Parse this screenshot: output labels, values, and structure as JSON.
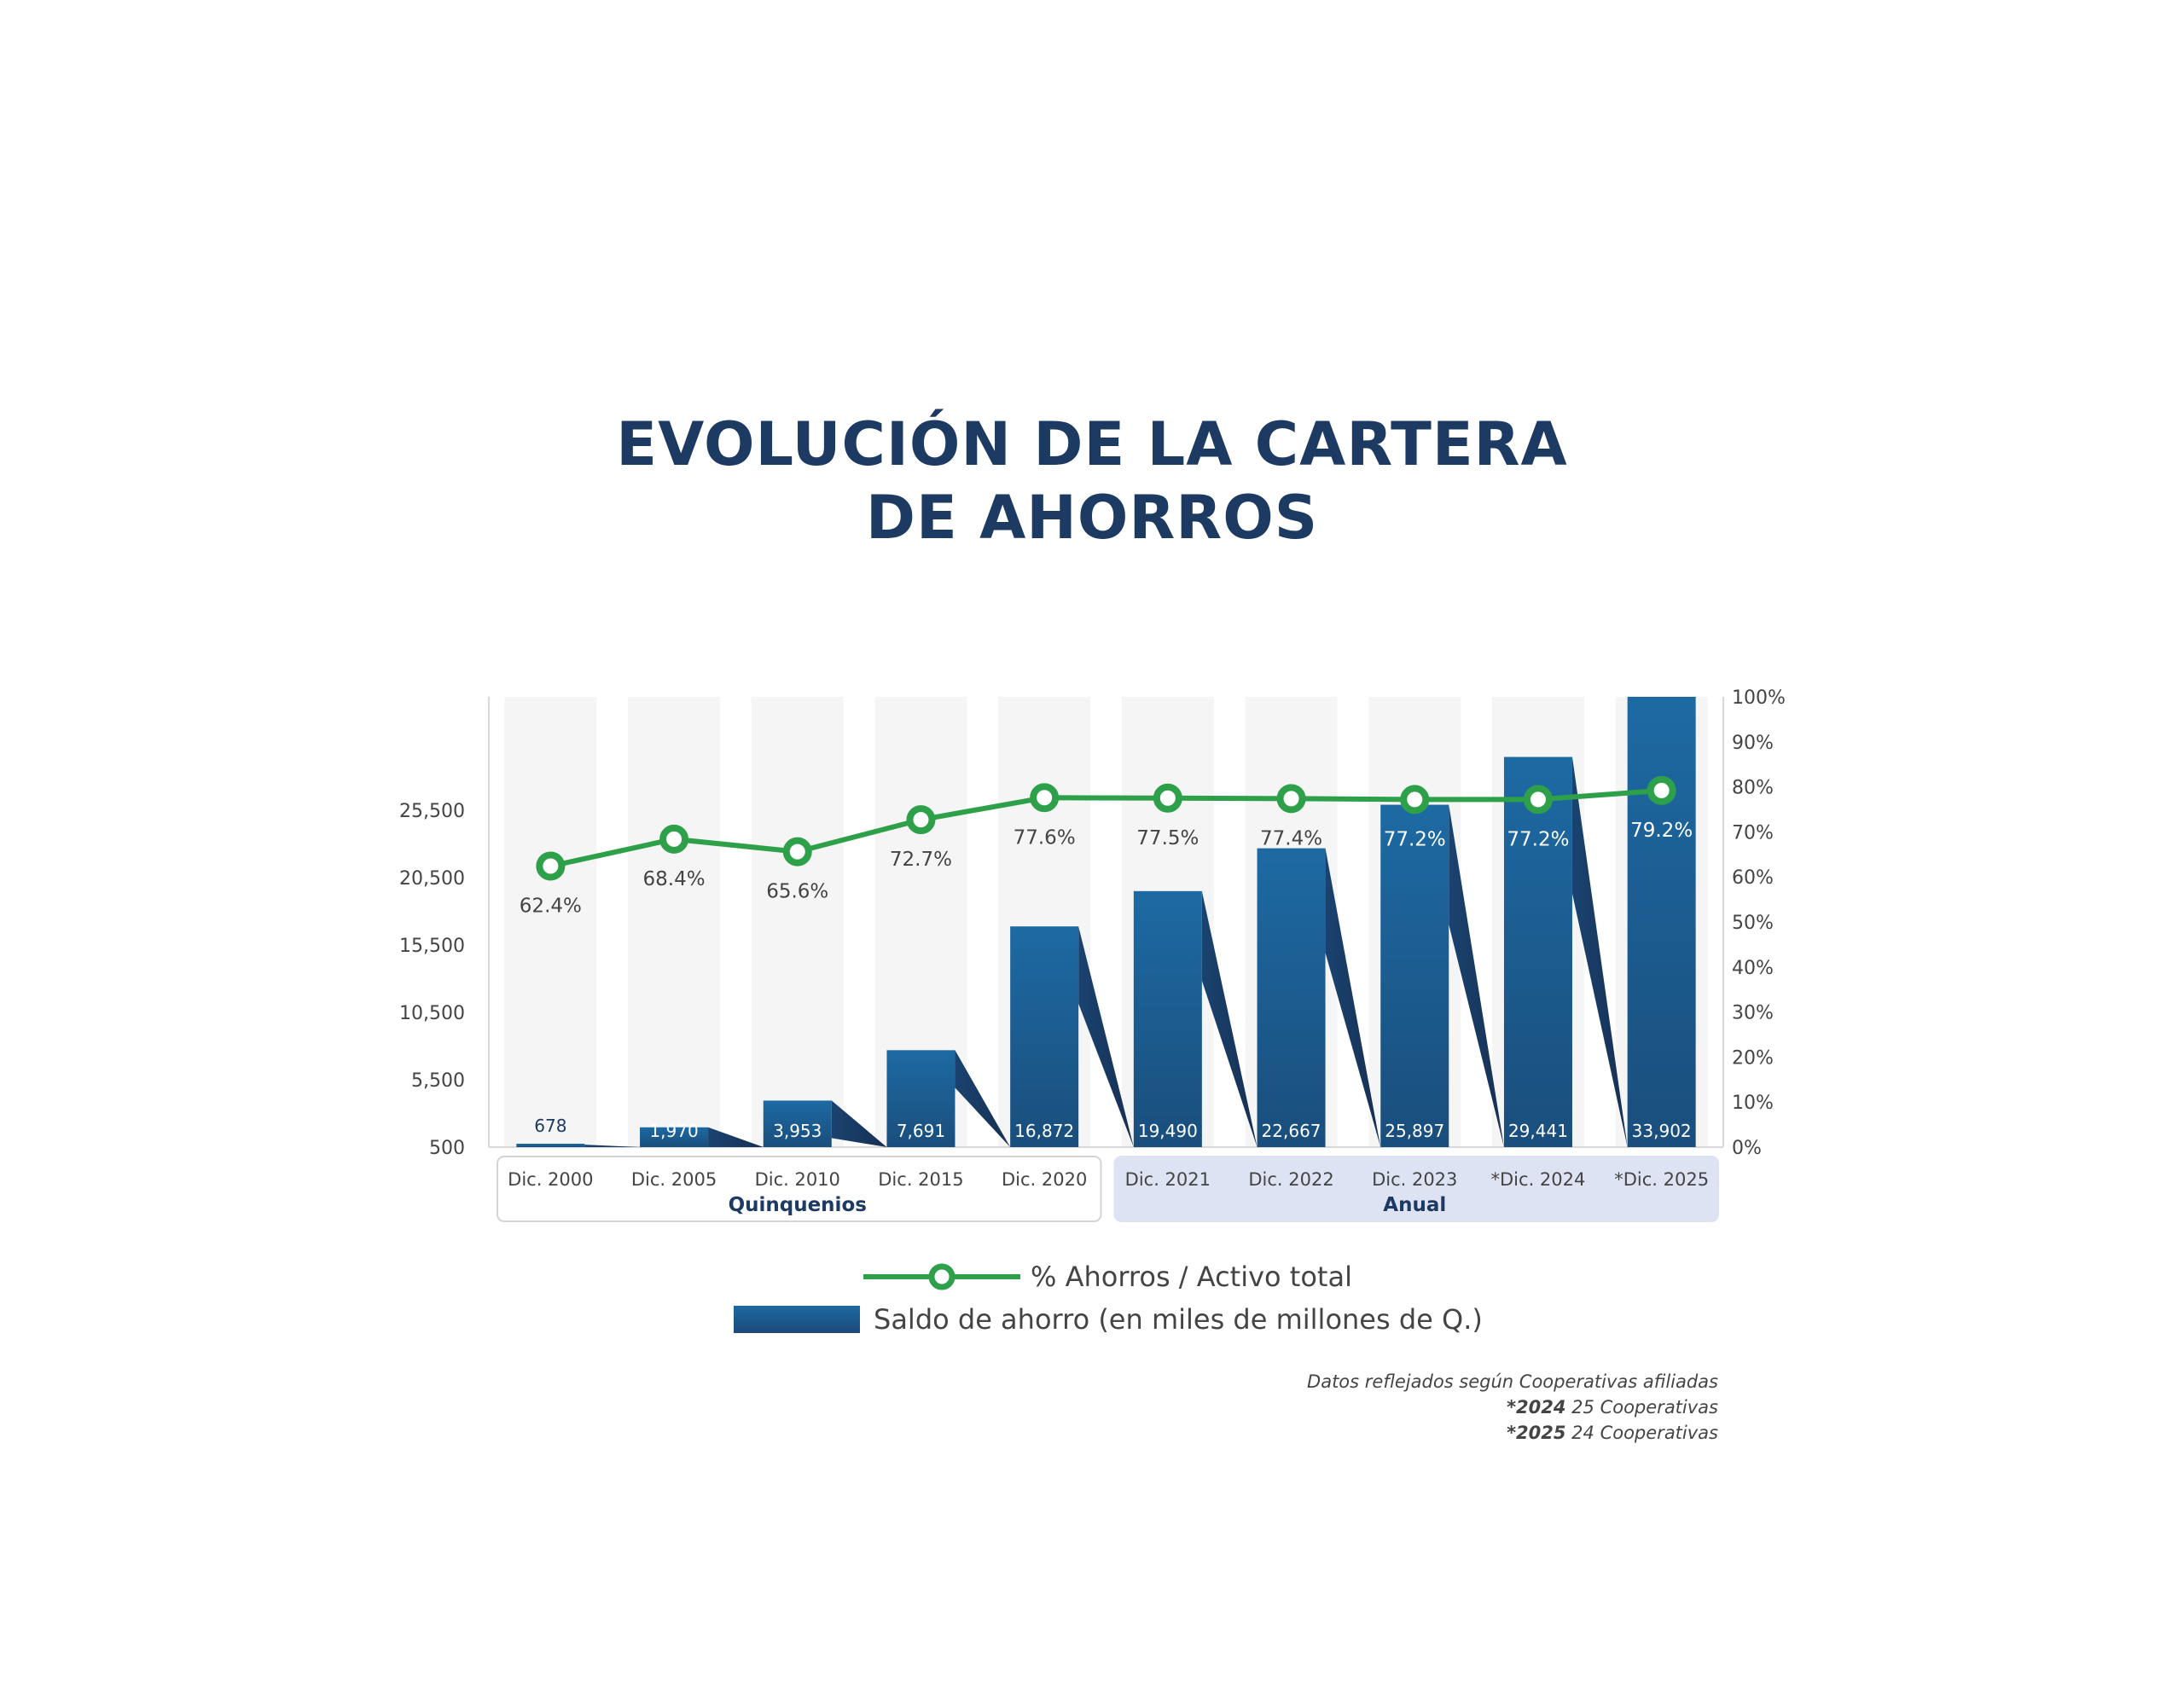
{
  "title": {
    "line1": "EVOLUCIÓN DE LA CARTERA",
    "line2": "DE AHORROS"
  },
  "colors": {
    "bar": "#1b5e92",
    "bar_dark": "#18335a",
    "line": "#2ea04a",
    "title": "#1d3a63",
    "group_bg": "#dde3f3"
  },
  "chart_data": {
    "type": "bar",
    "categories": [
      "Dic. 2000",
      "Dic. 2005",
      "Dic. 2010",
      "Dic. 2015",
      "Dic. 2020",
      "Dic. 2021",
      "Dic. 2022",
      "Dic. 2023",
      "*Dic. 2024",
      "*Dic. 2025"
    ],
    "bar_labels": [
      "678",
      "1,970",
      "3,953",
      "7,691",
      "16,872",
      "19,490",
      "22,667",
      "25,897",
      "29,441",
      "33,902"
    ],
    "series": [
      {
        "name": "Saldo de ahorro (en miles de millones de Q.)",
        "type": "bar",
        "axis": "left",
        "values": [
          678,
          1970,
          3953,
          7691,
          16872,
          19490,
          22667,
          25897,
          29441,
          33902
        ]
      },
      {
        "name": "% Ahorros / Activo total",
        "type": "line",
        "axis": "right",
        "values": [
          62.4,
          68.4,
          65.6,
          72.7,
          77.6,
          77.5,
          77.4,
          77.2,
          77.2,
          79.2
        ],
        "labels": [
          "62.4%",
          "68.4%",
          "65.6%",
          "72.7%",
          "77.6%",
          "77.5%",
          "77.4%",
          "77.2%",
          "77.2%",
          "79.2%"
        ]
      }
    ],
    "left_axis": {
      "ticks": [
        500,
        5500,
        10500,
        15500,
        20500,
        25500
      ],
      "tick_labels": [
        "500",
        "5,500",
        "10,500",
        "15,500",
        "20,500",
        "25,500"
      ],
      "range": [
        500,
        33902
      ]
    },
    "right_axis": {
      "ticks": [
        0,
        10,
        20,
        30,
        40,
        50,
        60,
        70,
        80,
        90,
        100
      ],
      "tick_labels": [
        "0%",
        "10%",
        "20%",
        "30%",
        "40%",
        "50%",
        "60%",
        "70%",
        "80%",
        "90%",
        "100%"
      ],
      "range": [
        0,
        100
      ]
    },
    "groups": [
      {
        "label": "Quinquenios",
        "start": 0,
        "end": 4
      },
      {
        "label": "Anual",
        "start": 5,
        "end": 9
      }
    ],
    "legend_placement": "bottom"
  },
  "legend": {
    "line_label": "% Ahorros / Activo total",
    "bar_label": "Saldo de ahorro (en miles de millones de Q.)"
  },
  "notes": {
    "line1": "Datos reflejados según Cooperativas afiliadas",
    "line2_year": "*2024",
    "line2_text": " 25 Cooperativas",
    "line3_year": "*2025",
    "line3_text": " 24 Cooperativas"
  }
}
